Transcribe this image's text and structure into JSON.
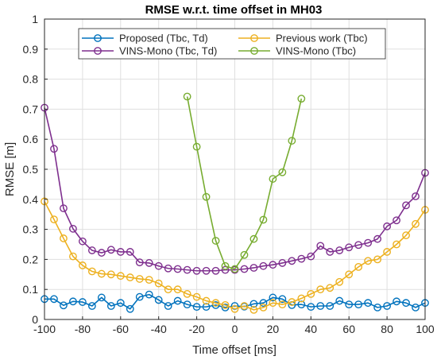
{
  "chart_data": {
    "type": "line",
    "title": "RMSE w.r.t. time offset in MH03",
    "xlabel": "Time offset [ms]",
    "ylabel": "RMSE [m]",
    "xlim": [
      -100,
      100
    ],
    "ylim": [
      0,
      1
    ],
    "xticks": [
      -100,
      -80,
      -60,
      -40,
      -20,
      0,
      20,
      40,
      60,
      80,
      100
    ],
    "yticks": [
      0,
      0.1,
      0.2,
      0.3,
      0.4,
      0.5,
      0.6,
      0.7,
      0.8,
      0.9,
      1
    ],
    "grid": true,
    "legend_position": "top",
    "series": [
      {
        "name": "Proposed (Tbc, Td)",
        "color": "#0072BD",
        "points": [
          [
            -100,
            0.068
          ],
          [
            -95,
            0.068
          ],
          [
            -90,
            0.047
          ],
          [
            -85,
            0.06
          ],
          [
            -80,
            0.058
          ],
          [
            -75,
            0.045
          ],
          [
            -70,
            0.073
          ],
          [
            -65,
            0.045
          ],
          [
            -60,
            0.055
          ],
          [
            -55,
            0.035
          ],
          [
            -50,
            0.075
          ],
          [
            -45,
            0.083
          ],
          [
            -40,
            0.065
          ],
          [
            -35,
            0.045
          ],
          [
            -30,
            0.062
          ],
          [
            -25,
            0.05
          ],
          [
            -20,
            0.042
          ],
          [
            -15,
            0.042
          ],
          [
            -10,
            0.048
          ],
          [
            -5,
            0.04
          ],
          [
            0,
            0.045
          ],
          [
            5,
            0.043
          ],
          [
            10,
            0.052
          ],
          [
            15,
            0.055
          ],
          [
            20,
            0.073
          ],
          [
            25,
            0.068
          ],
          [
            30,
            0.048
          ],
          [
            35,
            0.05
          ],
          [
            40,
            0.042
          ],
          [
            45,
            0.045
          ],
          [
            50,
            0.045
          ],
          [
            55,
            0.062
          ],
          [
            60,
            0.05
          ],
          [
            65,
            0.05
          ],
          [
            70,
            0.055
          ],
          [
            75,
            0.04
          ],
          [
            80,
            0.045
          ],
          [
            85,
            0.06
          ],
          [
            90,
            0.055
          ],
          [
            95,
            0.04
          ],
          [
            100,
            0.055
          ]
        ]
      },
      {
        "name": "Previous work (Tbc)",
        "color": "#EDB120",
        "points": [
          [
            -100,
            0.393
          ],
          [
            -95,
            0.333
          ],
          [
            -90,
            0.27
          ],
          [
            -85,
            0.21
          ],
          [
            -80,
            0.18
          ],
          [
            -75,
            0.16
          ],
          [
            -70,
            0.152
          ],
          [
            -65,
            0.15
          ],
          [
            -60,
            0.145
          ],
          [
            -55,
            0.14
          ],
          [
            -50,
            0.135
          ],
          [
            -45,
            0.132
          ],
          [
            -40,
            0.12
          ],
          [
            -35,
            0.1
          ],
          [
            -30,
            0.1
          ],
          [
            -25,
            0.085
          ],
          [
            -20,
            0.075
          ],
          [
            -15,
            0.062
          ],
          [
            -10,
            0.055
          ],
          [
            -5,
            0.048
          ],
          [
            0,
            0.035
          ],
          [
            5,
            0.045
          ],
          [
            10,
            0.032
          ],
          [
            15,
            0.04
          ],
          [
            20,
            0.055
          ],
          [
            25,
            0.05
          ],
          [
            30,
            0.058
          ],
          [
            35,
            0.07
          ],
          [
            40,
            0.085
          ],
          [
            45,
            0.1
          ],
          [
            50,
            0.105
          ],
          [
            55,
            0.125
          ],
          [
            60,
            0.15
          ],
          [
            65,
            0.175
          ],
          [
            70,
            0.195
          ],
          [
            75,
            0.2
          ],
          [
            80,
            0.225
          ],
          [
            85,
            0.25
          ],
          [
            90,
            0.28
          ],
          [
            95,
            0.318
          ],
          [
            100,
            0.365
          ]
        ]
      },
      {
        "name": "VINS-Mono (Tbc, Td)",
        "color": "#7E2F8E",
        "points": [
          [
            -100,
            0.705
          ],
          [
            -95,
            0.568
          ],
          [
            -90,
            0.37
          ],
          [
            -85,
            0.302
          ],
          [
            -80,
            0.26
          ],
          [
            -75,
            0.23
          ],
          [
            -70,
            0.222
          ],
          [
            -65,
            0.232
          ],
          [
            -60,
            0.225
          ],
          [
            -55,
            0.225
          ],
          [
            -50,
            0.19
          ],
          [
            -45,
            0.188
          ],
          [
            -40,
            0.178
          ],
          [
            -35,
            0.17
          ],
          [
            -30,
            0.168
          ],
          [
            -25,
            0.165
          ],
          [
            -20,
            0.162
          ],
          [
            -15,
            0.162
          ],
          [
            -10,
            0.162
          ],
          [
            -5,
            0.165
          ],
          [
            0,
            0.165
          ],
          [
            5,
            0.168
          ],
          [
            10,
            0.172
          ],
          [
            15,
            0.178
          ],
          [
            20,
            0.182
          ],
          [
            25,
            0.188
          ],
          [
            30,
            0.195
          ],
          [
            35,
            0.202
          ],
          [
            40,
            0.21
          ],
          [
            45,
            0.245
          ],
          [
            50,
            0.225
          ],
          [
            55,
            0.23
          ],
          [
            60,
            0.24
          ],
          [
            65,
            0.248
          ],
          [
            70,
            0.255
          ],
          [
            75,
            0.268
          ],
          [
            80,
            0.31
          ],
          [
            85,
            0.33
          ],
          [
            90,
            0.38
          ],
          [
            95,
            0.41
          ],
          [
            100,
            0.488
          ]
        ]
      },
      {
        "name": "VINS-Mono (Tbc)",
        "color": "#77AC30",
        "points": [
          [
            -25,
            0.742
          ],
          [
            -20,
            0.575
          ],
          [
            -15,
            0.408
          ],
          [
            -10,
            0.262
          ],
          [
            -5,
            0.178
          ],
          [
            0,
            0.168
          ],
          [
            5,
            0.215
          ],
          [
            10,
            0.268
          ],
          [
            15,
            0.332
          ],
          [
            20,
            0.468
          ],
          [
            25,
            0.49
          ],
          [
            30,
            0.595
          ],
          [
            35,
            0.735
          ]
        ]
      }
    ]
  }
}
